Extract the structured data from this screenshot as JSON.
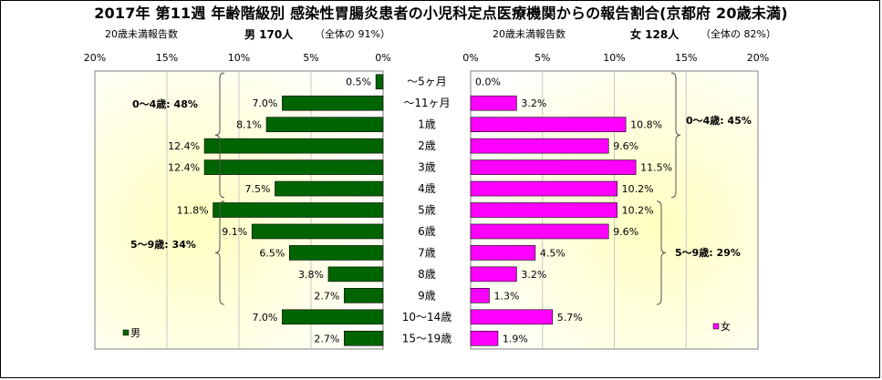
{
  "title": "2017年 第11週 年齢階級別 感染性胃腸炎患者の小児科定点医療機関からの報告割合(京都府 20歳未満)",
  "left_header": {
    "caption": "20歳未満報告数",
    "sex_count": "男 170人",
    "total": "（全体の 91%）"
  },
  "right_header": {
    "caption": "20歳未満報告数",
    "sex_count": "女 128人",
    "total": "（全体の 82%）"
  },
  "colors": {
    "male": "#006400",
    "female": "#ff00ff",
    "plot_bg_center": "#ffffc0",
    "plot_bg_edge": "#ffffff"
  },
  "chart_data": {
    "type": "bar",
    "orientation": "horizontal",
    "categories": [
      "～5ヶ月",
      "～11ヶ月",
      "1歳",
      "2歳",
      "3歳",
      "4歳",
      "5歳",
      "6歳",
      "7歳",
      "8歳",
      "9歳",
      "10～14歳",
      "15～19歳"
    ],
    "xlim": [
      0,
      20
    ],
    "x_ticks": [
      "0%",
      "5%",
      "10%",
      "15%",
      "20%"
    ],
    "series": [
      {
        "name": "男",
        "side": "left",
        "values": [
          0.5,
          7.0,
          8.1,
          12.4,
          12.4,
          7.5,
          11.8,
          9.1,
          6.5,
          3.8,
          2.7,
          7.0,
          2.7
        ],
        "labels": [
          "0.5%",
          "7.0%",
          "8.1%",
          "12.4%",
          "12.4%",
          "7.5%",
          "11.8%",
          "9.1%",
          "6.5%",
          "3.8%",
          "2.7%",
          "7.0%",
          "2.7%"
        ]
      },
      {
        "name": "女",
        "side": "right",
        "values": [
          0.0,
          3.2,
          10.8,
          9.6,
          11.5,
          10.2,
          10.2,
          9.6,
          4.5,
          3.2,
          1.3,
          5.7,
          1.9
        ],
        "labels": [
          "0.0%",
          "3.2%",
          "10.8%",
          "9.6%",
          "11.5%",
          "10.2%",
          "10.2%",
          "9.6%",
          "4.5%",
          "3.2%",
          "1.3%",
          "5.7%",
          "1.9%"
        ]
      }
    ],
    "annotations": {
      "male_0_4": "0～4歳: 48%",
      "male_5_9": "5～9歳: 34%",
      "female_0_4": "0～4歳: 45%",
      "female_5_9": "5～9歳: 29%"
    }
  }
}
